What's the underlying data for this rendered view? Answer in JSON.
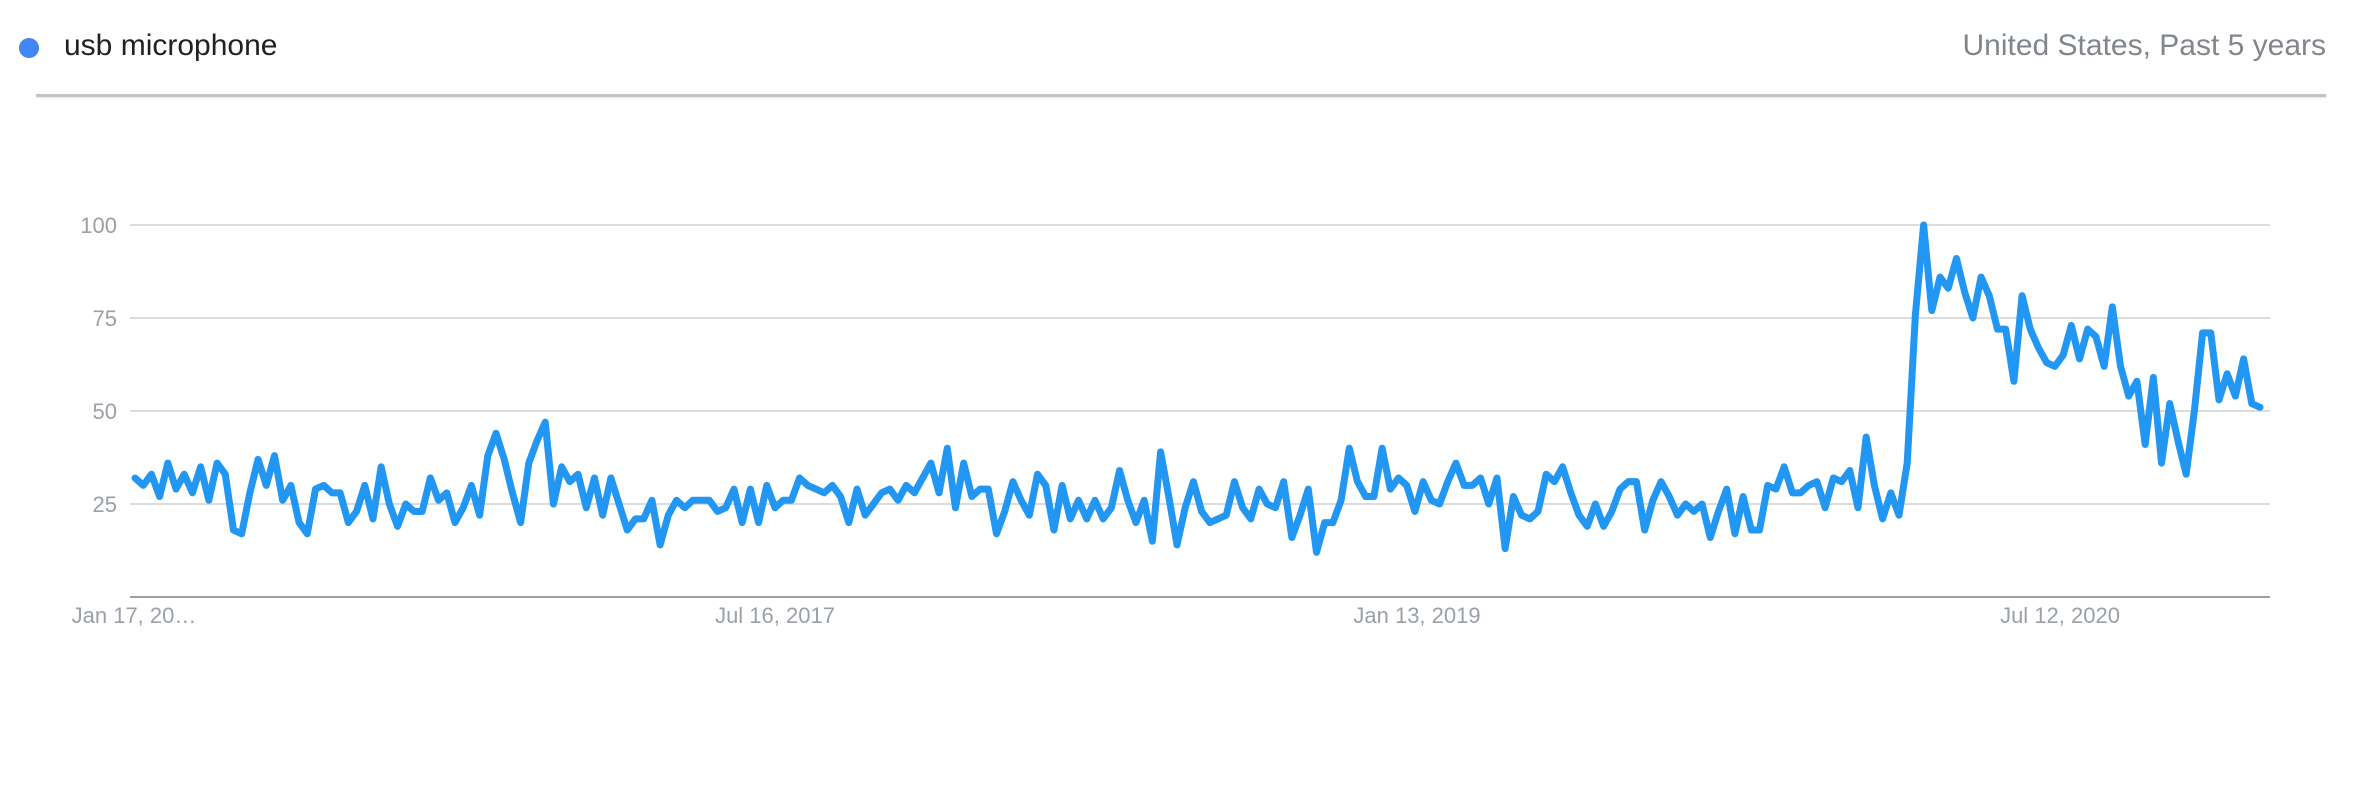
{
  "legend": {
    "term": "usb microphone",
    "scope": "United States, Past 5 years"
  },
  "colors": {
    "series": "#2196f3",
    "legend_dot": "#4285f4",
    "grid": "#dadce0",
    "axis": "#9aa0a6"
  },
  "chart_data": {
    "type": "line",
    "title": "",
    "xlabel": "",
    "ylabel": "",
    "ylim": [
      0,
      100
    ],
    "yticks": [
      "25",
      "50",
      "75",
      "100"
    ],
    "xticks": [
      "Jan 17, 20…",
      "Jul 16, 2017",
      "Jan 13, 2019",
      "Jul 12, 2020"
    ],
    "grid": true,
    "legend_position": "top-left",
    "series": [
      {
        "name": "usb microphone",
        "values": [
          32,
          30,
          33,
          27,
          36,
          29,
          33,
          28,
          35,
          26,
          36,
          33,
          18,
          17,
          28,
          37,
          30,
          38,
          26,
          30,
          20,
          17,
          29,
          30,
          28,
          28,
          20,
          23,
          30,
          21,
          35,
          25,
          19,
          25,
          23,
          23,
          32,
          26,
          28,
          20,
          24,
          30,
          22,
          38,
          44,
          37,
          28,
          20,
          36,
          42,
          47,
          25,
          35,
          31,
          33,
          24,
          32,
          22,
          32,
          25,
          18,
          21,
          21,
          26,
          14,
          22,
          26,
          24,
          26,
          26,
          26,
          23,
          24,
          29,
          20,
          29,
          20,
          30,
          24,
          26,
          26,
          32,
          30,
          29,
          28,
          30,
          27,
          20,
          29,
          22,
          25,
          28,
          29,
          26,
          30,
          28,
          32,
          36,
          28,
          40,
          24,
          36,
          27,
          29,
          29,
          17,
          23,
          31,
          26,
          22,
          33,
          30,
          18,
          30,
          21,
          26,
          21,
          26,
          21,
          24,
          34,
          26,
          20,
          26,
          15,
          39,
          27,
          14,
          24,
          31,
          23,
          20,
          21,
          22,
          31,
          24,
          21,
          29,
          25,
          24,
          31,
          16,
          22,
          29,
          12,
          20,
          20,
          26,
          40,
          31,
          27,
          27,
          40,
          29,
          32,
          30,
          23,
          31,
          26,
          25,
          31,
          36,
          30,
          30,
          32,
          25,
          32,
          13,
          27,
          22,
          21,
          23,
          33,
          31,
          35,
          28,
          22,
          19,
          25,
          19,
          23,
          29,
          31,
          31,
          18,
          26,
          31,
          27,
          22,
          25,
          23,
          25,
          16,
          23,
          29,
          17,
          27,
          18,
          18,
          30,
          29,
          35,
          28,
          28,
          30,
          31,
          24,
          32,
          31,
          34,
          24,
          43,
          30,
          21,
          28,
          22,
          36,
          76,
          100,
          77,
          86,
          83,
          91,
          82,
          75,
          86,
          81,
          72,
          72,
          58,
          81,
          72,
          67,
          63,
          62,
          65,
          73,
          64,
          72,
          70,
          62,
          78,
          62,
          54,
          58,
          41,
          59,
          36,
          52,
          42,
          33,
          50,
          71,
          71,
          53,
          60,
          54,
          64,
          52,
          51
        ]
      }
    ]
  }
}
